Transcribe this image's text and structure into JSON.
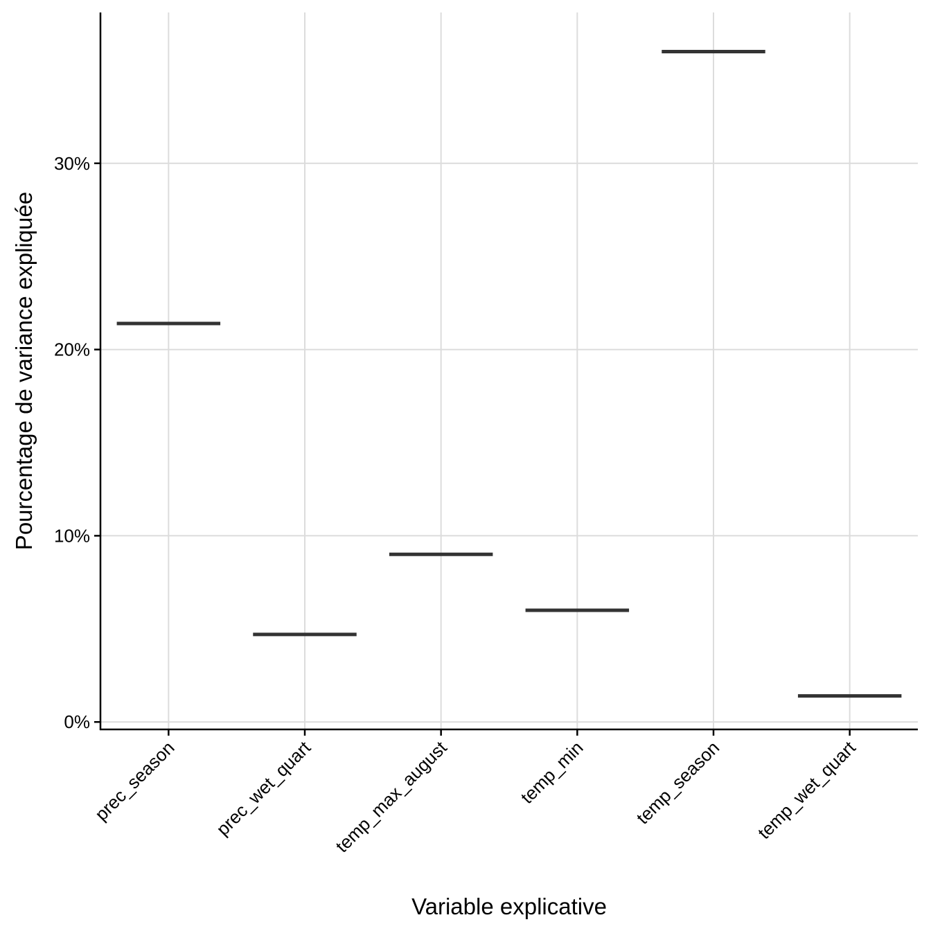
{
  "chart_data": {
    "type": "crossbar",
    "xlabel": "Variable explicative",
    "ylabel": "Pourcentage de variance expliquée",
    "categories": [
      "prec_season",
      "prec_wet_quart",
      "temp_max_august",
      "temp_min",
      "temp_season",
      "temp_wet_quart"
    ],
    "values": [
      21.4,
      4.7,
      9.0,
      6.0,
      36.0,
      1.4
    ],
    "y_unit": "%",
    "ylim": [
      -0.4,
      38.1
    ],
    "yticks": [
      0,
      10,
      20,
      30
    ],
    "ytick_labels": [
      "0%",
      "10%",
      "20%",
      "30%"
    ],
    "grid": true,
    "legend": "none",
    "colors": {
      "mark": "#333333",
      "grid": "#dcdcdc",
      "axis": "#000000"
    }
  }
}
